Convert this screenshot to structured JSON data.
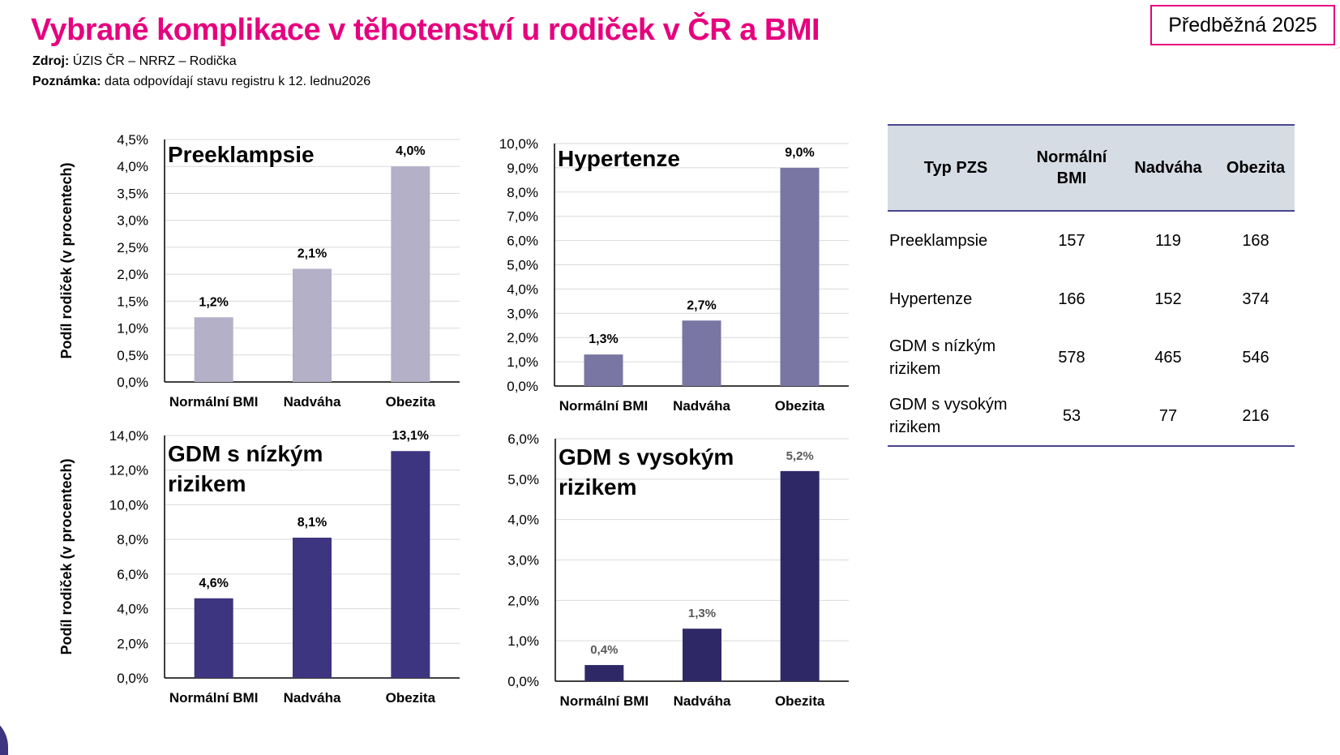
{
  "header": {
    "title": "Vybrané komplikace v těhotenství u rodiček v ČR a BMI",
    "source_label": "Zdroj:",
    "source_value": " ÚZIS ČR – NRRZ – Rodička",
    "note_label": "Poznámka:",
    "note_value": " data odpovídají stavu registru k 12. lednu2026",
    "badge": "Předběžná 2025"
  },
  "colors": {
    "accent": "#e6007e",
    "table_border": "#4a4590",
    "table_header_bg": "#d6dce4"
  },
  "chart_data": [
    {
      "type": "bar",
      "title": "Preeklampsie",
      "ylabel": "Podíl rodiček (v procentech)",
      "categories": [
        "Normální BMI",
        "Nadváha",
        "Obezita"
      ],
      "values": [
        1.2,
        2.1,
        4.0
      ],
      "data_labels": [
        "1,2%",
        "2,1%",
        "4,0%"
      ],
      "ylim": [
        0,
        4.5
      ],
      "ytick_step": 0.5,
      "ytick_labels": [
        "0,0%",
        "0,5%",
        "1,0%",
        "1,5%",
        "2,0%",
        "2,5%",
        "3,0%",
        "3,5%",
        "4,0%",
        "4,5%"
      ],
      "grid": true,
      "color": "#b3b0c8"
    },
    {
      "type": "bar",
      "title": "Hypertenze",
      "ylabel": "",
      "categories": [
        "Normální BMI",
        "Nadváha",
        "Obezita"
      ],
      "values": [
        1.3,
        2.7,
        9.0
      ],
      "data_labels": [
        "1,3%",
        "2,7%",
        "9,0%"
      ],
      "ylim": [
        0,
        10
      ],
      "ytick_step": 1,
      "ytick_labels": [
        "0,0%",
        "1,0%",
        "2,0%",
        "3,0%",
        "4,0%",
        "5,0%",
        "6,0%",
        "7,0%",
        "8,0%",
        "9,0%",
        "10,0%"
      ],
      "grid": true,
      "color": "#7a76a3"
    },
    {
      "type": "bar",
      "title": "GDM s nízkým rizikem",
      "ylabel": "Podíl rodiček (v procentech)",
      "categories": [
        "Normální BMI",
        "Nadváha",
        "Obezita"
      ],
      "values": [
        4.6,
        8.1,
        13.1
      ],
      "data_labels": [
        "4,6%",
        "8,1%",
        "13,1%"
      ],
      "ylim": [
        0,
        14
      ],
      "ytick_step": 2,
      "ytick_labels": [
        "0,0%",
        "2,0%",
        "4,0%",
        "6,0%",
        "8,0%",
        "10,0%",
        "12,0%",
        "14,0%"
      ],
      "grid": true,
      "color": "#3d3580"
    },
    {
      "type": "bar",
      "title": "GDM s vysokým rizikem",
      "ylabel": "",
      "categories": [
        "Normální BMI",
        "Nadváha",
        "Obezita"
      ],
      "values": [
        0.4,
        1.3,
        5.2
      ],
      "data_labels": [
        "0,4%",
        "1,3%",
        "5,2%"
      ],
      "ylim": [
        0,
        6
      ],
      "ytick_step": 1,
      "ytick_labels": [
        "0,0%",
        "1,0%",
        "2,0%",
        "3,0%",
        "4,0%",
        "5,0%",
        "6,0%"
      ],
      "grid": true,
      "color": "#2e2966"
    }
  ],
  "table": {
    "headers": [
      "Typ PZS",
      "Normální BMI",
      "Nadváha",
      "Obezita"
    ],
    "rows": [
      [
        "Preeklampsie",
        "157",
        "119",
        "168"
      ],
      [
        "Hypertenze",
        "166",
        "152",
        "374"
      ],
      [
        "GDM s nízkým rizikem",
        "578",
        "465",
        "546"
      ],
      [
        "GDM s vysokým rizikem",
        "53",
        "77",
        "216"
      ]
    ]
  }
}
